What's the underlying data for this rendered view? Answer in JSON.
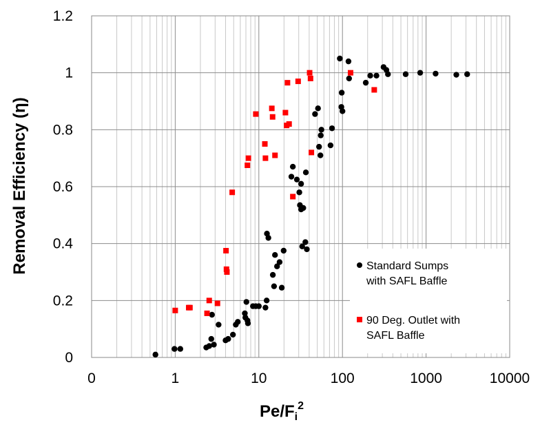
{
  "chart_data": {
    "type": "scatter",
    "xlabel": "Pe/F",
    "xlabel_sub": "i",
    "xlabel_sup": "2",
    "ylabel": "Removal Efficiency (η)",
    "x_scale": "log",
    "xlim": [
      0.1,
      10000
    ],
    "ylim": [
      0,
      1.2
    ],
    "x_ticks": [
      0.1,
      1,
      10,
      100,
      1000,
      10000
    ],
    "x_tick_labels": [
      "0",
      "1",
      "10",
      "100",
      "1000",
      "10000"
    ],
    "y_ticks": [
      0,
      0.2,
      0.4,
      0.6,
      0.8,
      1,
      1.2
    ],
    "y_tick_labels": [
      "0",
      "0.2",
      "0.4",
      "0.6",
      "0.8",
      "1",
      "1.2"
    ],
    "grid": true,
    "legend_position": "bottom-right",
    "series": [
      {
        "name": "Standard Sumps with SAFL Baffle",
        "legend_lines": [
          "Standard Sumps",
          "with SAFL Baffle"
        ],
        "marker": "circle",
        "color": "#000000",
        "points": [
          [
            0.58,
            0.01
          ],
          [
            0.98,
            0.03
          ],
          [
            1.15,
            0.03
          ],
          [
            2.35,
            0.035
          ],
          [
            2.55,
            0.04
          ],
          [
            2.7,
            0.065
          ],
          [
            2.75,
            0.15
          ],
          [
            2.9,
            0.045
          ],
          [
            3.3,
            0.115
          ],
          [
            4.0,
            0.06
          ],
          [
            4.3,
            0.065
          ],
          [
            4.9,
            0.08
          ],
          [
            5.3,
            0.115
          ],
          [
            5.6,
            0.125
          ],
          [
            6.8,
            0.155
          ],
          [
            6.9,
            0.14
          ],
          [
            7.1,
            0.195
          ],
          [
            7.3,
            0.13
          ],
          [
            7.4,
            0.12
          ],
          [
            8.5,
            0.18
          ],
          [
            9.2,
            0.18
          ],
          [
            10.0,
            0.18
          ],
          [
            12.0,
            0.175
          ],
          [
            12.4,
            0.2
          ],
          [
            12.5,
            0.435
          ],
          [
            13.0,
            0.42
          ],
          [
            14.7,
            0.29
          ],
          [
            15.2,
            0.25
          ],
          [
            15.6,
            0.36
          ],
          [
            16.5,
            0.32
          ],
          [
            17.7,
            0.335
          ],
          [
            18.8,
            0.245
          ],
          [
            19.8,
            0.375
          ],
          [
            24.5,
            0.635
          ],
          [
            25.5,
            0.67
          ],
          [
            28.5,
            0.625
          ],
          [
            30.5,
            0.58
          ],
          [
            31.0,
            0.535
          ],
          [
            32.0,
            0.61
          ],
          [
            32.0,
            0.52
          ],
          [
            33.0,
            0.39
          ],
          [
            34.0,
            0.525
          ],
          [
            36.0,
            0.405
          ],
          [
            36.5,
            0.65
          ],
          [
            37.5,
            0.38
          ],
          [
            47.0,
            0.855
          ],
          [
            51.0,
            0.875
          ],
          [
            52.5,
            0.74
          ],
          [
            54.5,
            0.71
          ],
          [
            55.0,
            0.78
          ],
          [
            56.0,
            0.8
          ],
          [
            72.0,
            0.745
          ],
          [
            75.0,
            0.805
          ],
          [
            93.0,
            1.05
          ],
          [
            97.0,
            0.88
          ],
          [
            98.0,
            0.93
          ],
          [
            100.0,
            0.865
          ],
          [
            118.0,
            1.04
          ],
          [
            120.0,
            0.98
          ],
          [
            190.0,
            0.965
          ],
          [
            215.0,
            0.99
          ],
          [
            255.0,
            0.99
          ],
          [
            310.0,
            1.02
          ],
          [
            335.0,
            1.01
          ],
          [
            350.0,
            0.995
          ],
          [
            570.0,
            0.995
          ],
          [
            850.0,
            1.0
          ],
          [
            1300.0,
            0.997
          ],
          [
            2300.0,
            0.993
          ],
          [
            3100.0,
            0.995
          ]
        ]
      },
      {
        "name": "90 Deg. Outlet with SAFL Baffle",
        "legend_lines": [
          "90 Deg. Outlet with",
          "SAFL Baffle"
        ],
        "marker": "square",
        "color": "#ff0000",
        "points": [
          [
            1.0,
            0.165
          ],
          [
            1.45,
            0.175
          ],
          [
            1.5,
            0.175
          ],
          [
            2.4,
            0.155
          ],
          [
            2.55,
            0.2
          ],
          [
            3.2,
            0.19
          ],
          [
            4.05,
            0.375
          ],
          [
            4.1,
            0.31
          ],
          [
            4.15,
            0.3
          ],
          [
            4.8,
            0.58
          ],
          [
            7.3,
            0.675
          ],
          [
            7.5,
            0.7
          ],
          [
            9.2,
            0.855
          ],
          [
            11.8,
            0.75
          ],
          [
            12.0,
            0.7
          ],
          [
            14.3,
            0.875
          ],
          [
            14.6,
            0.845
          ],
          [
            15.6,
            0.71
          ],
          [
            20.8,
            0.86
          ],
          [
            21.5,
            0.815
          ],
          [
            22.0,
            0.965
          ],
          [
            23.0,
            0.82
          ],
          [
            25.5,
            0.565
          ],
          [
            29.5,
            0.97
          ],
          [
            40.5,
            1.0
          ],
          [
            41.5,
            0.98
          ],
          [
            42.5,
            0.72
          ],
          [
            125.0,
            1.0
          ],
          [
            240.0,
            0.94
          ]
        ]
      }
    ]
  }
}
